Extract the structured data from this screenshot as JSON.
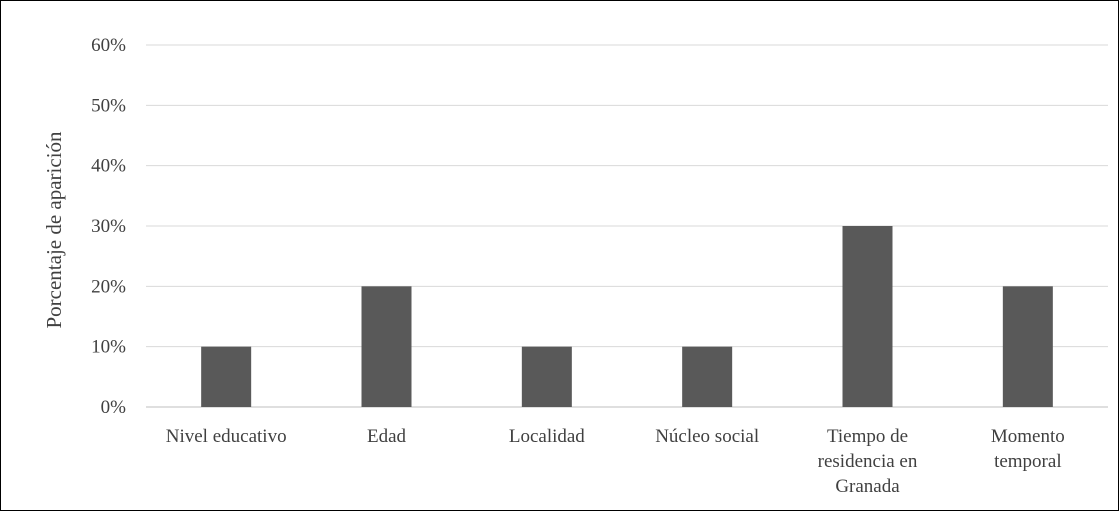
{
  "chart_data": {
    "type": "bar",
    "title": "",
    "xlabel": "",
    "ylabel": "Porcentaje de aparición",
    "categories": [
      [
        "Nivel educativo"
      ],
      [
        "Edad"
      ],
      [
        "Localidad"
      ],
      [
        "Núcleo social"
      ],
      [
        "Tiempo de",
        "residencia en",
        "Granada"
      ],
      [
        "Momento",
        "temporal"
      ]
    ],
    "values": [
      10,
      20,
      10,
      10,
      30,
      20
    ],
    "ylim": [
      0,
      60
    ],
    "yticks": [
      0,
      10,
      20,
      30,
      40,
      50,
      60
    ],
    "ytick_labels": [
      "0%",
      "10%",
      "20%",
      "30%",
      "40%",
      "50%",
      "60%"
    ],
    "grid": true,
    "legend": "none",
    "colors": {
      "bar": "#595959",
      "grid": "#d9d9d9",
      "text": "#404040"
    }
  }
}
